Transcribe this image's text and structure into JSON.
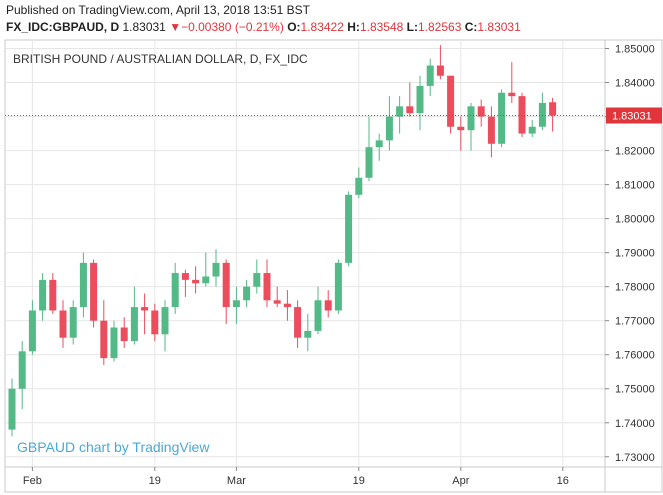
{
  "header": {
    "published": "Published on TradingView.com, April 13, 2018 13:51 BST",
    "symbol": "FX_IDC:GBPAUD, D",
    "last": "1.83031",
    "change_arrow": "▼",
    "change": "−0.00380 (−0.21%)",
    "o_label": "O:",
    "o_value": "1.83422",
    "h_label": "H:",
    "h_value": "1.83548",
    "l_label": "L:",
    "l_value": "1.82563",
    "c_label": "C:",
    "c_value": "1.83031"
  },
  "watermark": "GBPAUD chart by TradingView",
  "colors": {
    "up": "#53b987",
    "down": "#eb4d5c",
    "grid": "#e6e6e6",
    "price_line": "#e0353b",
    "watermark": "#4aa8d8"
  },
  "chart_data": {
    "type": "candlestick",
    "title": "BRITISH POUND / AUSTRALIAN DOLLAR, D, FX_IDC",
    "ylim": [
      1.727,
      1.8525
    ],
    "yticks": [
      "1.73000",
      "1.74000",
      "1.75000",
      "1.76000",
      "1.77000",
      "1.78000",
      "1.79000",
      "1.80000",
      "1.81000",
      "1.82000",
      "1.83000",
      "1.84000",
      "1.85000"
    ],
    "xticks": [
      {
        "label": "Feb",
        "index": 2
      },
      {
        "label": "19",
        "index": 14
      },
      {
        "label": "Mar",
        "index": 22
      },
      {
        "label": "19",
        "index": 34
      },
      {
        "label": "Apr",
        "index": 44
      },
      {
        "label": "16",
        "index": 54
      }
    ],
    "last_price": 1.83031,
    "last_price_label": "1.83031",
    "candles": [
      {
        "o": 1.738,
        "h": 1.753,
        "l": 1.736,
        "c": 1.75
      },
      {
        "o": 1.75,
        "h": 1.764,
        "l": 1.744,
        "c": 1.761
      },
      {
        "o": 1.761,
        "h": 1.776,
        "l": 1.76,
        "c": 1.773
      },
      {
        "o": 1.773,
        "h": 1.784,
        "l": 1.77,
        "c": 1.782
      },
      {
        "o": 1.782,
        "h": 1.784,
        "l": 1.772,
        "c": 1.773
      },
      {
        "o": 1.773,
        "h": 1.776,
        "l": 1.762,
        "c": 1.765
      },
      {
        "o": 1.765,
        "h": 1.776,
        "l": 1.763,
        "c": 1.774
      },
      {
        "o": 1.774,
        "h": 1.79,
        "l": 1.771,
        "c": 1.787
      },
      {
        "o": 1.787,
        "h": 1.788,
        "l": 1.768,
        "c": 1.77
      },
      {
        "o": 1.77,
        "h": 1.776,
        "l": 1.757,
        "c": 1.759
      },
      {
        "o": 1.759,
        "h": 1.77,
        "l": 1.758,
        "c": 1.768
      },
      {
        "o": 1.768,
        "h": 1.771,
        "l": 1.762,
        "c": 1.764
      },
      {
        "o": 1.764,
        "h": 1.78,
        "l": 1.763,
        "c": 1.774
      },
      {
        "o": 1.774,
        "h": 1.778,
        "l": 1.766,
        "c": 1.773
      },
      {
        "o": 1.773,
        "h": 1.775,
        "l": 1.764,
        "c": 1.766
      },
      {
        "o": 1.766,
        "h": 1.776,
        "l": 1.761,
        "c": 1.774
      },
      {
        "o": 1.774,
        "h": 1.787,
        "l": 1.772,
        "c": 1.784
      },
      {
        "o": 1.784,
        "h": 1.785,
        "l": 1.777,
        "c": 1.782
      },
      {
        "o": 1.782,
        "h": 1.786,
        "l": 1.778,
        "c": 1.781
      },
      {
        "o": 1.781,
        "h": 1.79,
        "l": 1.78,
        "c": 1.783
      },
      {
        "o": 1.783,
        "h": 1.791,
        "l": 1.78,
        "c": 1.787
      },
      {
        "o": 1.787,
        "h": 1.788,
        "l": 1.769,
        "c": 1.774
      },
      {
        "o": 1.774,
        "h": 1.78,
        "l": 1.769,
        "c": 1.776
      },
      {
        "o": 1.776,
        "h": 1.782,
        "l": 1.774,
        "c": 1.78
      },
      {
        "o": 1.78,
        "h": 1.788,
        "l": 1.778,
        "c": 1.784
      },
      {
        "o": 1.784,
        "h": 1.788,
        "l": 1.774,
        "c": 1.776
      },
      {
        "o": 1.776,
        "h": 1.78,
        "l": 1.774,
        "c": 1.775
      },
      {
        "o": 1.775,
        "h": 1.779,
        "l": 1.77,
        "c": 1.774
      },
      {
        "o": 1.774,
        "h": 1.776,
        "l": 1.762,
        "c": 1.765
      },
      {
        "o": 1.765,
        "h": 1.772,
        "l": 1.761,
        "c": 1.767
      },
      {
        "o": 1.767,
        "h": 1.78,
        "l": 1.766,
        "c": 1.776
      },
      {
        "o": 1.776,
        "h": 1.779,
        "l": 1.771,
        "c": 1.773
      },
      {
        "o": 1.773,
        "h": 1.788,
        "l": 1.772,
        "c": 1.787
      },
      {
        "o": 1.787,
        "h": 1.808,
        "l": 1.786,
        "c": 1.807
      },
      {
        "o": 1.807,
        "h": 1.815,
        "l": 1.806,
        "c": 1.812
      },
      {
        "o": 1.812,
        "h": 1.83,
        "l": 1.811,
        "c": 1.821
      },
      {
        "o": 1.821,
        "h": 1.825,
        "l": 1.817,
        "c": 1.823
      },
      {
        "o": 1.823,
        "h": 1.836,
        "l": 1.82,
        "c": 1.83
      },
      {
        "o": 1.83,
        "h": 1.836,
        "l": 1.825,
        "c": 1.833
      },
      {
        "o": 1.833,
        "h": 1.84,
        "l": 1.83,
        "c": 1.831
      },
      {
        "o": 1.831,
        "h": 1.842,
        "l": 1.826,
        "c": 1.839
      },
      {
        "o": 1.839,
        "h": 1.847,
        "l": 1.836,
        "c": 1.845
      },
      {
        "o": 1.845,
        "h": 1.851,
        "l": 1.841,
        "c": 1.842
      },
      {
        "o": 1.842,
        "h": 1.842,
        "l": 1.825,
        "c": 1.827
      },
      {
        "o": 1.827,
        "h": 1.83,
        "l": 1.82,
        "c": 1.826
      },
      {
        "o": 1.826,
        "h": 1.834,
        "l": 1.82,
        "c": 1.833
      },
      {
        "o": 1.833,
        "h": 1.835,
        "l": 1.827,
        "c": 1.83
      },
      {
        "o": 1.83,
        "h": 1.833,
        "l": 1.818,
        "c": 1.822
      },
      {
        "o": 1.822,
        "h": 1.838,
        "l": 1.821,
        "c": 1.837
      },
      {
        "o": 1.837,
        "h": 1.846,
        "l": 1.834,
        "c": 1.836
      },
      {
        "o": 1.836,
        "h": 1.837,
        "l": 1.824,
        "c": 1.825
      },
      {
        "o": 1.825,
        "h": 1.829,
        "l": 1.824,
        "c": 1.827
      },
      {
        "o": 1.827,
        "h": 1.837,
        "l": 1.826,
        "c": 1.834
      },
      {
        "o": 1.8342,
        "h": 1.8355,
        "l": 1.8256,
        "c": 1.8303
      }
    ]
  }
}
